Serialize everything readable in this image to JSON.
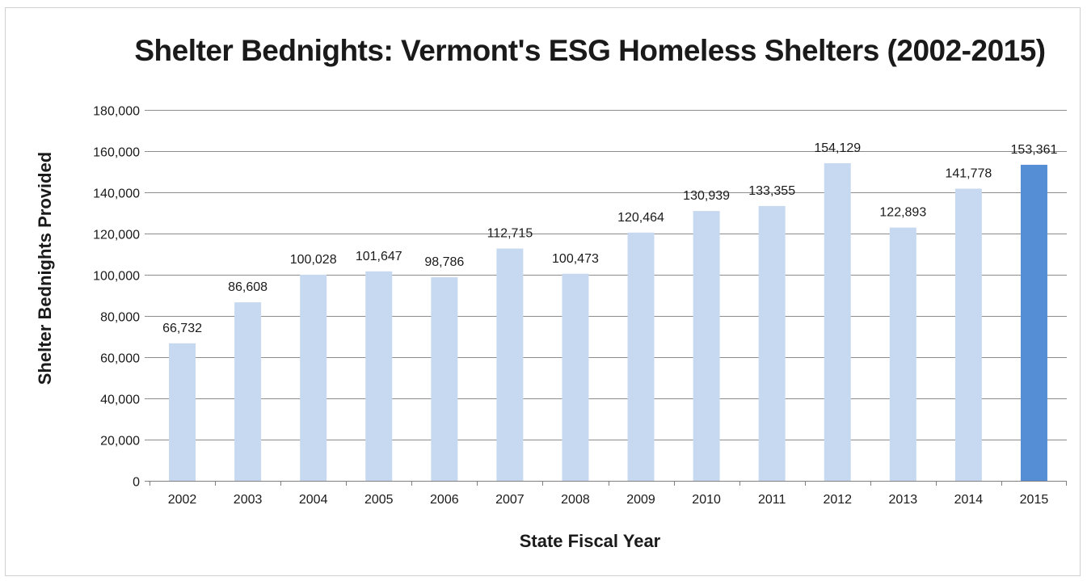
{
  "chart_data": {
    "type": "bar",
    "title": "Shelter Bednights: Vermont's ESG Homeless Shelters (2002-2015)",
    "xlabel": "State Fiscal Year",
    "ylabel": "Shelter Bednights Provided",
    "categories": [
      "2002",
      "2003",
      "2004",
      "2005",
      "2006",
      "2007",
      "2008",
      "2009",
      "2010",
      "2011",
      "2012",
      "2013",
      "2014",
      "2015"
    ],
    "values": [
      66732,
      86608,
      100028,
      101647,
      98786,
      112715,
      100473,
      120464,
      130939,
      133355,
      154129,
      122893,
      141778,
      153361
    ],
    "data_labels": [
      "66,732",
      "86,608",
      "100,028",
      "101,647",
      "98,786",
      "112,715",
      "100,473",
      "120,464",
      "130,939",
      "133,355",
      "154,129",
      "122,893",
      "141,778",
      "153,361"
    ],
    "ylim": [
      0,
      180000
    ],
    "yticks": [
      "0",
      "20,000",
      "40,000",
      "60,000",
      "80,000",
      "100,000",
      "120,000",
      "140,000",
      "160,000",
      "180,000"
    ],
    "ytick_values": [
      0,
      20000,
      40000,
      60000,
      80000,
      100000,
      120000,
      140000,
      160000,
      180000
    ],
    "grid": true,
    "legend": "none",
    "colors": {
      "bar": "#c6d9f0",
      "highlight": "#558ed5",
      "grid": "#8c8c8c"
    },
    "highlight_index": 13
  }
}
